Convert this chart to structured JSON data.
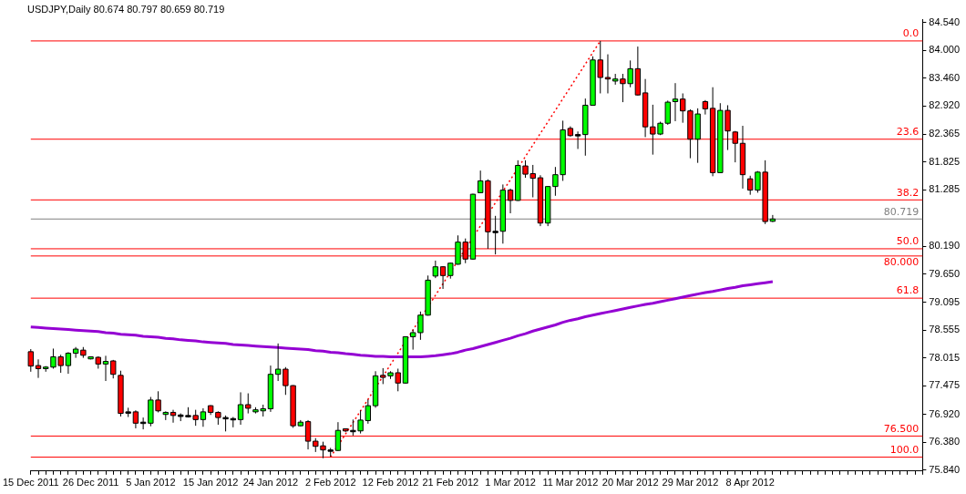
{
  "chart_data": {
    "type": "candlestick",
    "title": "USDJPY,Daily 80.674 80.797 80.659 80.719",
    "categories": [
      "15 Dec 2011",
      null,
      null,
      null,
      null,
      null,
      null,
      null,
      "26 Dec 2011",
      null,
      null,
      null,
      null,
      null,
      null,
      null,
      "5 Jan 2012",
      null,
      null,
      null,
      null,
      null,
      null,
      null,
      "15 Jan 2012",
      null,
      null,
      null,
      null,
      null,
      null,
      null,
      "24 Jan 2012",
      null,
      null,
      null,
      null,
      null,
      null,
      null,
      "2 Feb 2012",
      null,
      null,
      null,
      null,
      null,
      null,
      null,
      "12 Feb 2012",
      null,
      null,
      null,
      null,
      null,
      null,
      null,
      "21 Feb 2012",
      null,
      null,
      null,
      null,
      null,
      null,
      null,
      "1 Mar 2012",
      null,
      null,
      null,
      null,
      null,
      null,
      null,
      "11 Mar 2012",
      null,
      null,
      null,
      null,
      null,
      null,
      null,
      "20 Mar 2012",
      null,
      null,
      null,
      null,
      null,
      null,
      null,
      "29 Mar 2012",
      null,
      null,
      null,
      null,
      null,
      null,
      null,
      "8 Apr 2012",
      null,
      null,
      null
    ],
    "ohlc": [
      [
        78.14,
        78.19,
        77.75,
        77.86
      ],
      [
        77.87,
        77.99,
        77.63,
        77.81
      ],
      [
        77.81,
        77.86,
        77.75,
        77.84
      ],
      [
        77.84,
        78.2,
        77.81,
        78.04
      ],
      [
        78.04,
        78.08,
        77.73,
        77.87
      ],
      [
        77.87,
        78.13,
        77.71,
        78.11
      ],
      [
        78.11,
        78.23,
        78.02,
        78.19
      ],
      [
        78.17,
        78.23,
        78.02,
        78.07
      ],
      [
        78.0,
        78.04,
        77.99,
        78.04
      ],
      [
        78.03,
        78.05,
        77.81,
        77.9
      ],
      [
        77.9,
        78.06,
        77.57,
        77.95
      ],
      [
        77.96,
        77.98,
        77.62,
        77.7
      ],
      [
        77.68,
        77.77,
        76.88,
        76.94
      ],
      [
        76.97,
        77.05,
        76.87,
        76.96
      ],
      [
        76.97,
        77.0,
        76.65,
        76.75
      ],
      [
        76.77,
        76.86,
        76.63,
        76.76
      ],
      [
        76.75,
        77.26,
        76.69,
        77.2
      ],
      [
        77.2,
        77.37,
        76.96,
        76.99
      ],
      [
        76.92,
        76.98,
        76.81,
        76.96
      ],
      [
        76.96,
        77.01,
        76.76,
        76.9
      ],
      [
        76.91,
        76.94,
        76.79,
        76.88
      ],
      [
        76.9,
        77.06,
        76.86,
        76.89
      ],
      [
        76.9,
        77.01,
        76.7,
        76.82
      ],
      [
        76.82,
        77.04,
        76.68,
        76.97
      ],
      [
        77.09,
        77.1,
        76.91,
        76.96
      ],
      [
        76.96,
        76.98,
        76.72,
        76.86
      ],
      [
        76.86,
        76.9,
        76.59,
        76.85
      ],
      [
        76.84,
        76.87,
        76.67,
        76.83
      ],
      [
        76.82,
        77.35,
        76.72,
        77.11
      ],
      [
        77.11,
        77.33,
        76.94,
        77.04
      ],
      [
        76.97,
        77.06,
        76.94,
        77.01
      ],
      [
        76.99,
        77.11,
        76.88,
        77.03
      ],
      [
        77.03,
        77.87,
        76.97,
        77.7
      ],
      [
        77.7,
        78.3,
        77.57,
        77.8
      ],
      [
        77.8,
        77.84,
        77.3,
        77.48
      ],
      [
        77.48,
        77.49,
        76.66,
        76.7
      ],
      [
        76.7,
        76.81,
        76.69,
        76.77
      ],
      [
        76.78,
        76.81,
        76.24,
        76.4
      ],
      [
        76.4,
        76.46,
        76.19,
        76.3
      ],
      [
        76.31,
        76.39,
        76.07,
        76.23
      ],
      [
        76.23,
        76.27,
        76.1,
        76.22
      ],
      [
        76.22,
        76.77,
        76.21,
        76.61
      ],
      [
        76.64,
        76.65,
        76.58,
        76.6
      ],
      [
        76.6,
        76.82,
        76.51,
        76.61
      ],
      [
        76.6,
        77.0,
        76.55,
        76.81
      ],
      [
        76.8,
        77.21,
        76.74,
        77.09
      ],
      [
        77.09,
        77.76,
        77.05,
        77.67
      ],
      [
        77.68,
        77.82,
        77.51,
        77.64
      ],
      [
        77.67,
        77.76,
        77.61,
        77.73
      ],
      [
        77.73,
        77.81,
        77.37,
        77.53
      ],
      [
        77.53,
        78.43,
        77.52,
        78.43
      ],
      [
        78.43,
        78.57,
        78.18,
        78.51
      ],
      [
        78.51,
        78.92,
        78.37,
        78.85
      ],
      [
        78.85,
        79.62,
        78.84,
        79.53
      ],
      [
        79.61,
        79.91,
        79.57,
        79.79
      ],
      [
        79.79,
        79.8,
        79.36,
        79.62
      ],
      [
        79.62,
        79.87,
        79.56,
        79.86
      ],
      [
        79.84,
        80.4,
        79.83,
        80.27
      ],
      [
        80.27,
        80.34,
        79.86,
        79.94
      ],
      [
        79.94,
        81.21,
        79.93,
        81.2
      ],
      [
        81.23,
        81.66,
        81.22,
        81.46
      ],
      [
        81.46,
        81.49,
        80.14,
        80.47
      ],
      [
        80.48,
        80.78,
        80.03,
        80.47
      ],
      [
        80.48,
        81.39,
        80.24,
        81.28
      ],
      [
        81.28,
        81.31,
        80.83,
        81.08
      ],
      [
        81.08,
        81.86,
        81.07,
        81.76
      ],
      [
        81.75,
        81.86,
        81.52,
        81.59
      ],
      [
        81.6,
        81.77,
        81.14,
        81.51
      ],
      [
        81.52,
        81.57,
        80.58,
        80.64
      ],
      [
        80.64,
        81.36,
        80.58,
        81.35
      ],
      [
        81.35,
        81.73,
        81.17,
        81.58
      ],
      [
        81.58,
        82.63,
        81.46,
        82.45
      ],
      [
        82.48,
        82.52,
        82.32,
        82.34
      ],
      [
        82.36,
        82.42,
        82.08,
        82.35
      ],
      [
        82.36,
        83.06,
        81.95,
        82.93
      ],
      [
        82.93,
        83.88,
        82.93,
        83.81
      ],
      [
        83.81,
        84.18,
        83.16,
        83.47
      ],
      [
        83.47,
        83.92,
        83.16,
        83.44
      ],
      [
        83.4,
        83.54,
        83.33,
        83.44
      ],
      [
        83.44,
        83.54,
        82.99,
        83.35
      ],
      [
        83.35,
        83.8,
        83.28,
        83.64
      ],
      [
        83.64,
        84.07,
        83.12,
        83.13
      ],
      [
        83.17,
        83.44,
        82.31,
        82.51
      ],
      [
        82.51,
        82.94,
        81.97,
        82.37
      ],
      [
        82.37,
        82.61,
        82.35,
        82.58
      ],
      [
        82.58,
        83.02,
        82.55,
        82.99
      ],
      [
        83.0,
        83.36,
        82.62,
        83.05
      ],
      [
        83.05,
        83.16,
        82.59,
        82.82
      ],
      [
        82.82,
        82.85,
        81.9,
        82.27
      ],
      [
        82.27,
        82.87,
        81.81,
        82.76
      ],
      [
        83.0,
        83.03,
        82.75,
        82.86
      ],
      [
        82.87,
        83.28,
        81.55,
        81.62
      ],
      [
        81.62,
        82.97,
        81.61,
        82.83
      ],
      [
        82.83,
        82.93,
        82.06,
        82.43
      ],
      [
        82.41,
        82.43,
        81.82,
        82.19
      ],
      [
        82.19,
        82.53,
        81.31,
        81.58
      ],
      [
        81.5,
        81.56,
        81.19,
        81.28
      ],
      [
        81.28,
        81.65,
        81.23,
        81.63
      ],
      [
        81.63,
        81.86,
        80.62,
        80.67
      ],
      [
        80.674,
        80.797,
        80.659,
        80.719
      ]
    ],
    "colors": [
      "#ff0000",
      "#ff0000",
      "#00ff00",
      "#00ff00",
      "#ff0000",
      "#00ff00",
      "#00ff00",
      "#ff0000",
      "#00ff00",
      "#ff0000",
      "#00ff00",
      "#ff0000",
      "#ff0000",
      "#000000",
      "#ff0000",
      "#000000",
      "#00ff00",
      "#ff0000",
      "#00ff00",
      "#ff0000",
      "#000000",
      "#000000",
      "#ff0000",
      "#00ff00",
      "#ff0000",
      "#ff0000",
      "#000000",
      "#000000",
      "#00ff00",
      "#ff0000",
      "#00ff00",
      "#00ff00",
      "#00ff00",
      "#00ff00",
      "#ff0000",
      "#ff0000",
      "#00ff00",
      "#ff0000",
      "#ff0000",
      "#ff0000",
      "#000000",
      "#00ff00",
      "#ff0000",
      "#000000",
      "#00ff00",
      "#00ff00",
      "#00ff00",
      "#ff0000",
      "#00ff00",
      "#ff0000",
      "#00ff00",
      "#00ff00",
      "#00ff00",
      "#00ff00",
      "#00ff00",
      "#ff0000",
      "#00ff00",
      "#00ff00",
      "#ff0000",
      "#00ff00",
      "#00ff00",
      "#ff0000",
      "#000000",
      "#00ff00",
      "#ff0000",
      "#00ff00",
      "#ff0000",
      "#ff0000",
      "#ff0000",
      "#00ff00",
      "#00ff00",
      "#00ff00",
      "#ff0000",
      "#000000",
      "#00ff00",
      "#00ff00",
      "#ff0000",
      "#ff0000",
      "#00ff00",
      "#ff0000",
      "#00ff00",
      "#ff0000",
      "#ff0000",
      "#ff0000",
      "#00ff00",
      "#00ff00",
      "#00ff00",
      "#ff0000",
      "#ff0000",
      "#00ff00",
      "#ff0000",
      "#ff0000",
      "#00ff00",
      "#ff0000",
      "#ff0000",
      "#ff0000",
      "#ff0000",
      "#00ff00",
      "#ff0000",
      "#00ff00"
    ],
    "series": [
      {
        "type": "line",
        "color": "#9400d3",
        "marker": "none",
        "values": [
          78.62,
          78.61,
          78.6,
          78.59,
          78.58,
          78.57,
          78.56,
          78.55,
          78.54,
          78.53,
          78.51,
          78.5,
          78.48,
          78.47,
          78.46,
          78.44,
          78.43,
          78.42,
          78.4,
          78.39,
          78.37,
          78.36,
          78.35,
          78.33,
          78.32,
          78.31,
          78.3,
          78.28,
          78.27,
          78.26,
          78.25,
          78.24,
          78.23,
          78.22,
          78.21,
          78.2,
          78.19,
          78.18,
          78.16,
          78.15,
          78.13,
          78.12,
          78.1,
          78.09,
          78.07,
          78.06,
          78.05,
          78.05,
          78.04,
          78.04,
          78.04,
          78.04,
          78.04,
          78.05,
          78.06,
          78.08,
          78.1,
          78.13,
          78.17,
          78.2,
          78.24,
          78.28,
          78.32,
          78.36,
          78.4,
          78.45,
          78.49,
          78.54,
          78.58,
          78.62,
          78.66,
          78.71,
          78.75,
          78.78,
          78.82,
          78.85,
          78.88,
          78.91,
          78.94,
          78.97,
          79.0,
          79.03,
          79.06,
          79.08,
          79.11,
          79.14,
          79.17,
          79.2,
          79.23,
          79.26,
          79.29,
          79.31,
          79.34,
          79.37,
          79.39,
          79.42,
          79.44,
          79.46,
          79.48,
          79.5
        ]
      },
      {
        "type": "line",
        "color": "#ff0000",
        "marker": "none",
        "line_style": "dotted",
        "values": [
          null,
          null,
          null,
          null,
          null,
          null,
          null,
          null,
          null,
          null,
          null,
          null,
          null,
          null,
          null,
          null,
          null,
          null,
          null,
          null,
          null,
          null,
          null,
          null,
          null,
          null,
          null,
          null,
          null,
          null,
          null,
          null,
          null,
          null,
          null,
          null,
          null,
          null,
          null,
          null,
          76.09,
          null,
          null,
          null,
          null,
          null,
          null,
          null,
          null,
          null,
          null,
          null,
          null,
          null,
          null,
          null,
          null,
          null,
          null,
          null,
          null,
          null,
          null,
          null,
          null,
          null,
          null,
          null,
          null,
          null,
          null,
          null,
          null,
          null,
          null,
          null,
          84.18,
          null,
          null,
          null,
          null,
          null,
          null,
          null,
          null,
          null,
          null,
          null,
          null,
          null,
          null,
          null,
          null,
          null,
          null,
          null,
          null,
          null,
          null,
          null
        ]
      }
    ],
    "ylim": [
      75.82,
      84.6
    ],
    "yticks": [
      {
        "value": 84.54,
        "label": "84.540"
      },
      {
        "value": 84.0,
        "label": "84.000"
      },
      {
        "value": 83.46,
        "label": "83.460"
      },
      {
        "value": 82.92,
        "label": "82.920"
      },
      82.365,
      81.825,
      81.285,
      {
        "value": 80.19,
        "label": "80.190"
      },
      {
        "value": 79.65,
        "label": "79.650"
      },
      79.095,
      78.555,
      78.015,
      77.475,
      {
        "value": 76.92,
        "label": "76.920"
      },
      {
        "value": 76.38,
        "label": "76.380"
      },
      {
        "value": 75.84,
        "label": "75.840"
      }
    ],
    "ref_lines": [
      {
        "axis": "y",
        "value": 84.18,
        "color": "#ff0000"
      },
      {
        "axis": "y",
        "value": 82.27,
        "color": "#ff0000"
      },
      {
        "axis": "y",
        "value": 81.09,
        "color": "#ff0000"
      },
      {
        "axis": "y",
        "value": 80.14,
        "color": "#ff0000"
      },
      {
        "axis": "y",
        "value": 79.18,
        "color": "#ff0000"
      },
      {
        "axis": "y",
        "value": 76.09,
        "color": "#ff0000"
      },
      {
        "axis": "y",
        "value": 80.719,
        "label": "80.719",
        "color": "#808080"
      },
      {
        "axis": "y",
        "value": 80.0,
        "label": "80.000",
        "color": "#ff0000"
      },
      {
        "axis": "y",
        "value": 76.5,
        "label": "76.500",
        "color": "#ff0000"
      }
    ],
    "annotations": [
      {
        "text": "0.0",
        "y": 84.18
      },
      {
        "text": "23.6",
        "y": 82.27
      },
      {
        "text": "38.2",
        "y": 81.09
      },
      {
        "text": "50.0",
        "y": 80.14
      },
      {
        "text": "61.8",
        "y": 79.18
      },
      {
        "text": "100.0",
        "y": 76.09
      }
    ],
    "grid": false,
    "legend": false
  }
}
